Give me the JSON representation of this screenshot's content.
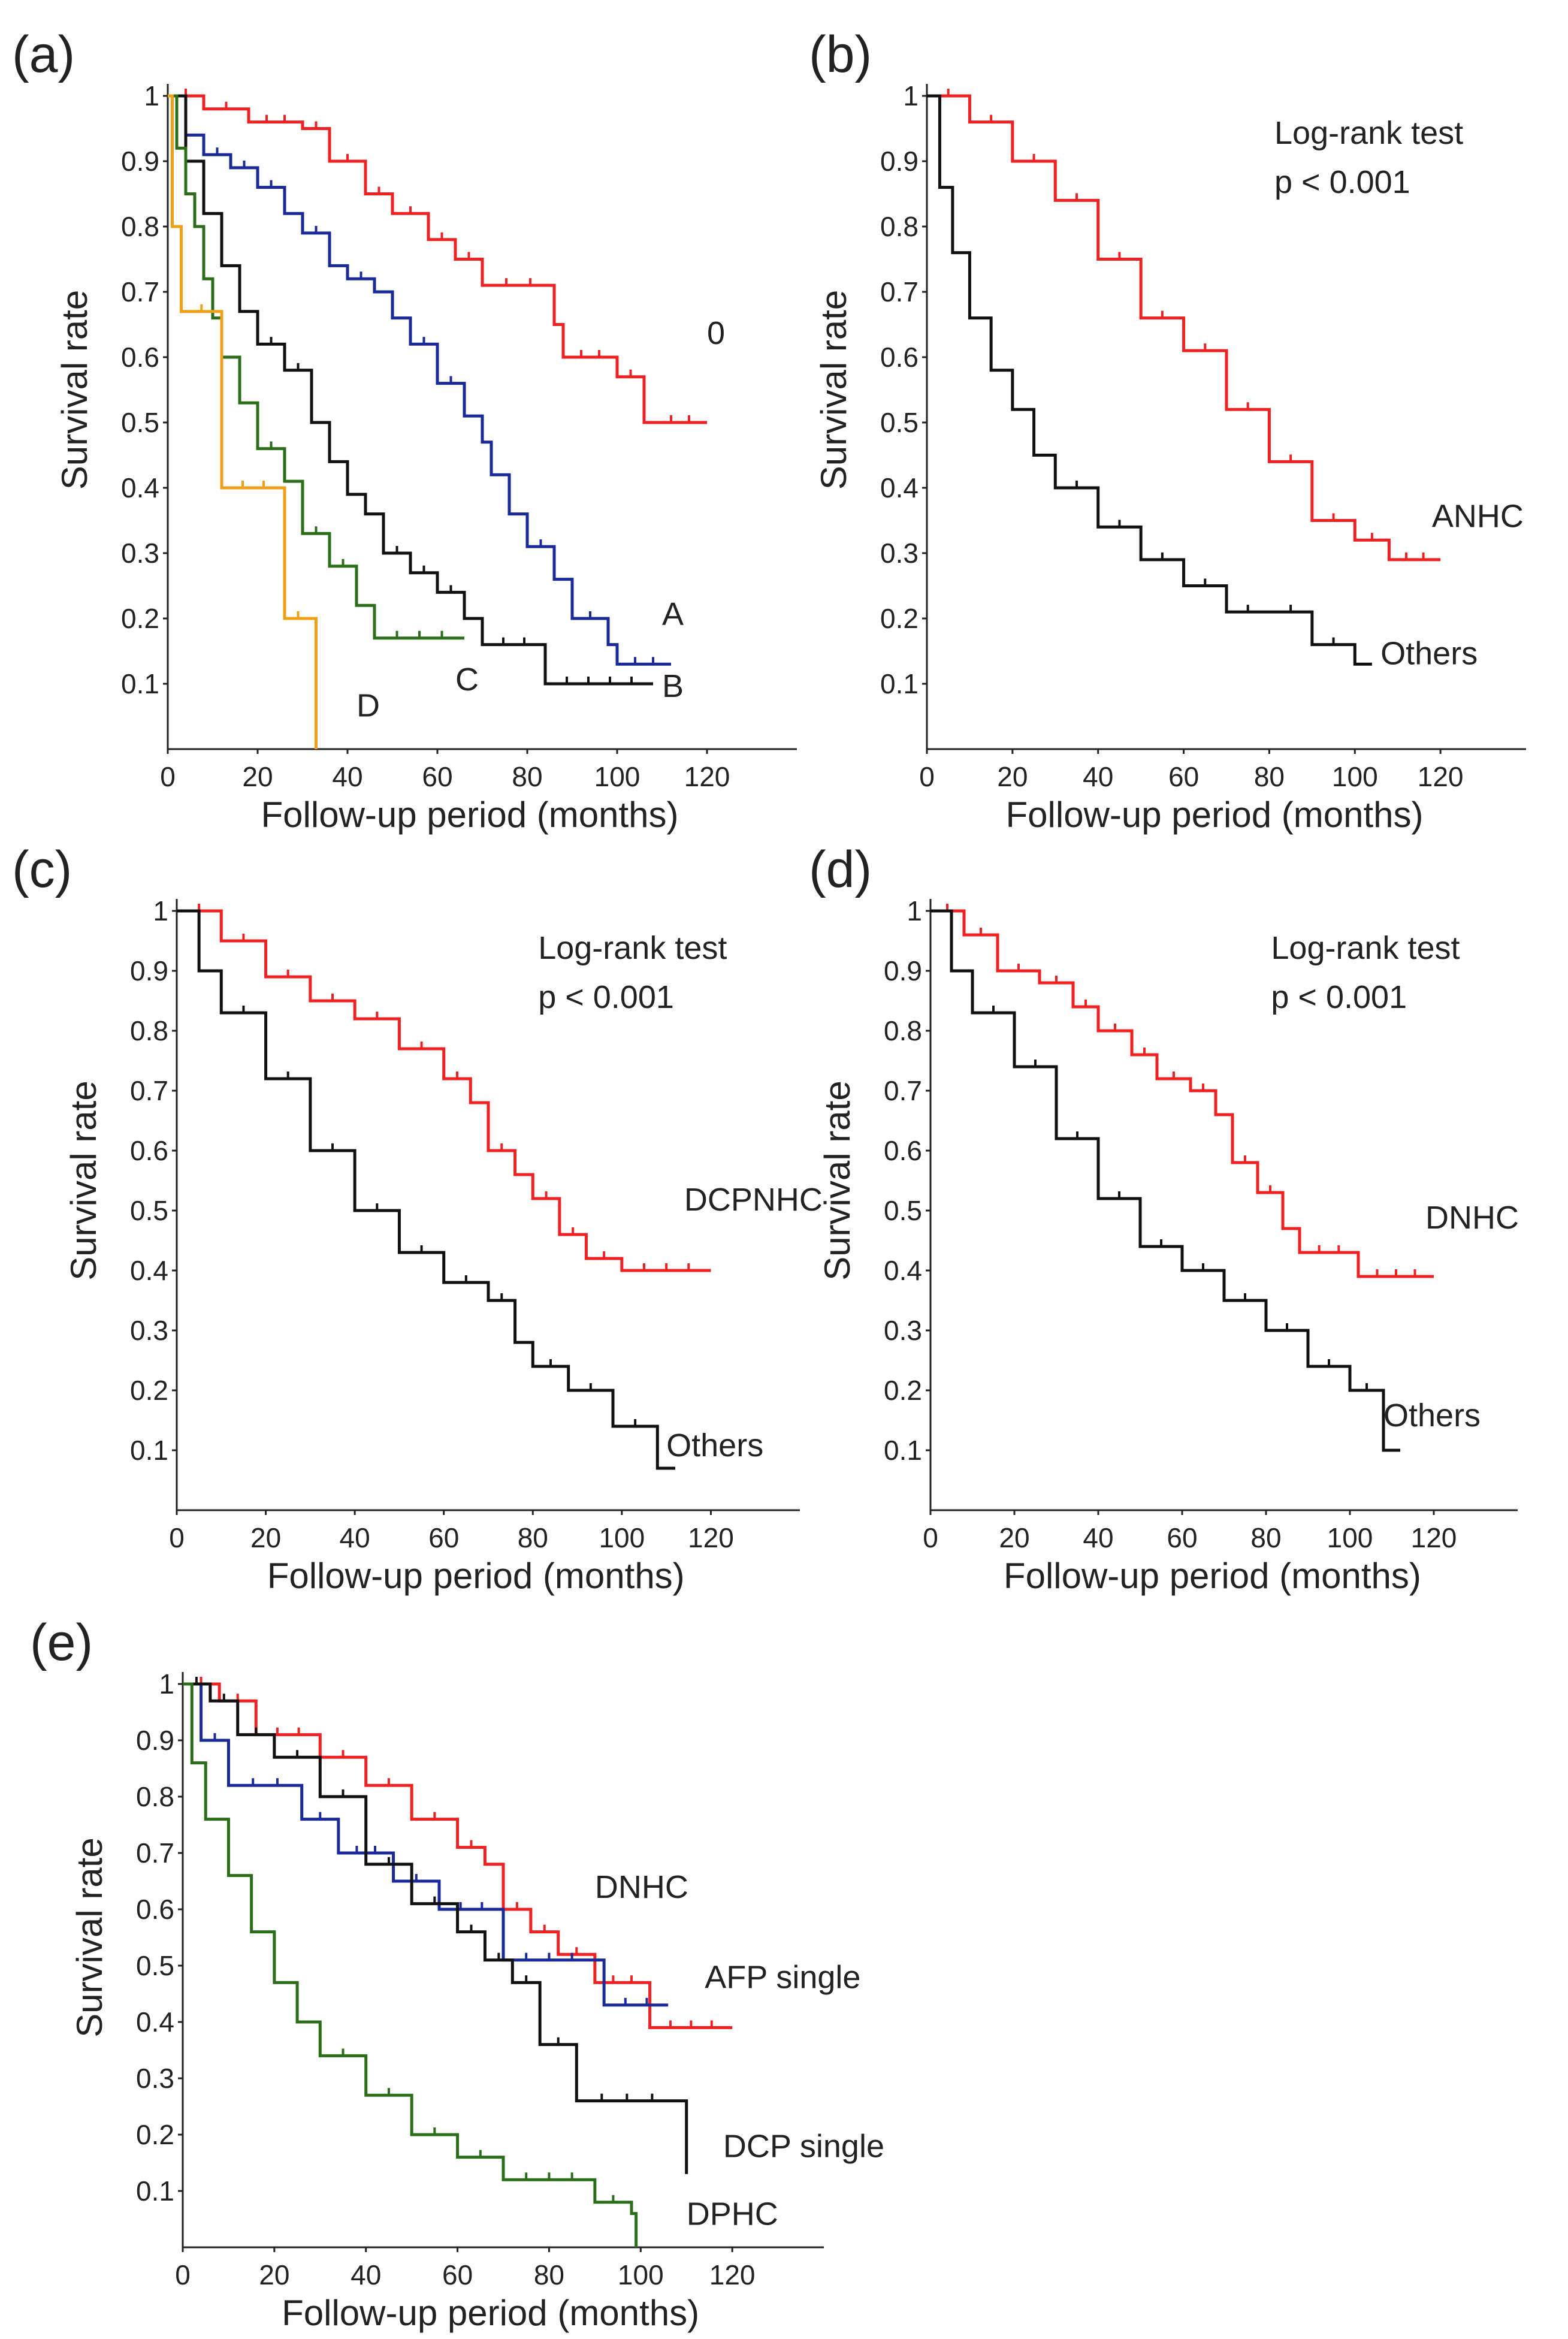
{
  "chart_data": [
    {
      "panel": "(a)",
      "type": "line",
      "title": "",
      "xlabel": "Follow-up period  (months)",
      "ylabel": "Survival rate",
      "xlim": [
        0,
        140
      ],
      "ylim": [
        0,
        1
      ],
      "xticks": [
        0,
        20,
        40,
        60,
        80,
        100,
        120
      ],
      "yticks": [
        0.1,
        0.2,
        0.3,
        0.4,
        0.5,
        0.6,
        0.7,
        0.8,
        0.9,
        1
      ],
      "annotation": [],
      "series": [
        {
          "name": "0",
          "color": "#ee2222",
          "label_at": [
            120,
            0.62
          ],
          "x": [
            0,
            8,
            18,
            30,
            36,
            44,
            50,
            58,
            64,
            70,
            86,
            88,
            100,
            106,
            108,
            120
          ],
          "y": [
            1,
            0.98,
            0.96,
            0.95,
            0.9,
            0.85,
            0.82,
            0.78,
            0.75,
            0.71,
            0.65,
            0.6,
            0.57,
            0.5,
            0.5,
            0.5
          ]
        },
        {
          "name": "A",
          "color": "#1a2a99",
          "label_at": [
            110,
            0.19
          ],
          "x": [
            0,
            4,
            8,
            14,
            20,
            26,
            30,
            36,
            40,
            46,
            50,
            54,
            60,
            66,
            70,
            72,
            76,
            80,
            86,
            90,
            98,
            100,
            112
          ],
          "y": [
            1,
            0.94,
            0.91,
            0.89,
            0.86,
            0.82,
            0.79,
            0.74,
            0.72,
            0.7,
            0.66,
            0.62,
            0.56,
            0.51,
            0.47,
            0.42,
            0.36,
            0.31,
            0.26,
            0.2,
            0.16,
            0.13,
            0.13
          ]
        },
        {
          "name": "B",
          "color": "#111111",
          "label_at": [
            110,
            0.08
          ],
          "x": [
            0,
            4,
            8,
            12,
            16,
            20,
            26,
            32,
            36,
            40,
            44,
            48,
            54,
            60,
            66,
            70,
            84,
            108
          ],
          "y": [
            1,
            0.9,
            0.82,
            0.74,
            0.67,
            0.62,
            0.58,
            0.5,
            0.44,
            0.39,
            0.36,
            0.3,
            0.27,
            0.24,
            0.2,
            0.16,
            0.1,
            0.1
          ]
        },
        {
          "name": "C",
          "color": "#2a6e1a",
          "label_at": [
            64,
            0.09
          ],
          "x": [
            0,
            2,
            4,
            6,
            8,
            10,
            12,
            16,
            20,
            26,
            30,
            36,
            42,
            46,
            66
          ],
          "y": [
            1,
            0.92,
            0.85,
            0.8,
            0.72,
            0.66,
            0.6,
            0.53,
            0.46,
            0.41,
            0.33,
            0.28,
            0.22,
            0.17,
            0.17
          ]
        },
        {
          "name": "D",
          "color": "#f0a018",
          "label_at": [
            42,
            0.05
          ],
          "x": [
            0,
            1,
            3,
            12,
            26,
            32,
            33
          ],
          "y": [
            1,
            0.8,
            0.67,
            0.4,
            0.2,
            0.2,
            0
          ]
        }
      ]
    },
    {
      "panel": "(b)",
      "type": "line",
      "title": "",
      "xlabel": "Follow-up period  (months)",
      "ylabel": "Survival rate",
      "xlim": [
        0,
        140
      ],
      "ylim": [
        0,
        1
      ],
      "xticks": [
        0,
        20,
        40,
        60,
        80,
        100,
        120
      ],
      "yticks": [
        0.1,
        0.2,
        0.3,
        0.4,
        0.5,
        0.6,
        0.7,
        0.8,
        0.9,
        1
      ],
      "annotation": [
        "Log-rank test",
        " p < 0.001"
      ],
      "series": [
        {
          "name": "ANHC",
          "color": "#ee2222",
          "label_at": [
            118,
            0.34
          ],
          "x": [
            0,
            10,
            20,
            30,
            40,
            50,
            60,
            70,
            80,
            90,
            100,
            108,
            120
          ],
          "y": [
            1,
            0.96,
            0.9,
            0.84,
            0.75,
            0.66,
            0.61,
            0.52,
            0.44,
            0.35,
            0.32,
            0.29,
            0.29
          ]
        },
        {
          "name": "Others",
          "color": "#111111",
          "label_at": [
            106,
            0.13
          ],
          "x": [
            0,
            3,
            6,
            10,
            15,
            20,
            25,
            30,
            40,
            50,
            60,
            70,
            80,
            90,
            100,
            104
          ],
          "y": [
            1,
            0.86,
            0.76,
            0.66,
            0.58,
            0.52,
            0.45,
            0.4,
            0.34,
            0.29,
            0.25,
            0.21,
            0.21,
            0.16,
            0.13,
            0.13
          ]
        }
      ]
    },
    {
      "panel": "(c)",
      "type": "line",
      "title": "",
      "xlabel": "Follow-up period  (months)",
      "ylabel": "Survival rate",
      "xlim": [
        0,
        140
      ],
      "ylim": [
        0,
        1
      ],
      "xticks": [
        0,
        20,
        40,
        60,
        80,
        100,
        120
      ],
      "yticks": [
        0.1,
        0.2,
        0.3,
        0.4,
        0.5,
        0.6,
        0.7,
        0.8,
        0.9,
        1
      ],
      "annotation": [
        "Log-rank test",
        " p < 0.001"
      ],
      "series": [
        {
          "name": "DCPNHC",
          "color": "#ee2222",
          "label_at": [
            114,
            0.5
          ],
          "x": [
            0,
            10,
            20,
            30,
            40,
            50,
            60,
            66,
            70,
            76,
            80,
            86,
            92,
            100,
            120
          ],
          "y": [
            1,
            0.95,
            0.89,
            0.85,
            0.82,
            0.77,
            0.72,
            0.68,
            0.6,
            0.56,
            0.52,
            0.46,
            0.42,
            0.4,
            0.4
          ]
        },
        {
          "name": "Others",
          "color": "#111111",
          "label_at": [
            110,
            0.09
          ],
          "x": [
            0,
            5,
            10,
            20,
            30,
            40,
            50,
            60,
            70,
            76,
            80,
            88,
            98,
            108,
            112
          ],
          "y": [
            1,
            0.9,
            0.83,
            0.72,
            0.6,
            0.5,
            0.43,
            0.38,
            0.35,
            0.28,
            0.24,
            0.2,
            0.14,
            0.07,
            0.07
          ]
        }
      ]
    },
    {
      "panel": "(d)",
      "type": "line",
      "title": "",
      "xlabel": "Follow-up period  (months)",
      "ylabel": "Survival rate",
      "xlim": [
        0,
        140
      ],
      "ylim": [
        0,
        1
      ],
      "xticks": [
        0,
        20,
        40,
        60,
        80,
        100,
        120
      ],
      "yticks": [
        0.1,
        0.2,
        0.3,
        0.4,
        0.5,
        0.6,
        0.7,
        0.8,
        0.9,
        1
      ],
      "annotation": [
        "Log-rank test",
        " p < 0.001"
      ],
      "series": [
        {
          "name": "DNHC",
          "color": "#ee2222",
          "label_at": [
            118,
            0.47
          ],
          "x": [
            0,
            8,
            16,
            26,
            34,
            40,
            48,
            54,
            62,
            68,
            72,
            78,
            84,
            88,
            102,
            120
          ],
          "y": [
            1,
            0.96,
            0.9,
            0.88,
            0.84,
            0.8,
            0.76,
            0.72,
            0.7,
            0.66,
            0.58,
            0.53,
            0.47,
            0.43,
            0.39,
            0.39
          ]
        },
        {
          "name": "Others",
          "color": "#111111",
          "label_at": [
            108,
            0.14
          ],
          "x": [
            0,
            5,
            10,
            20,
            30,
            40,
            50,
            60,
            70,
            80,
            90,
            100,
            108,
            112
          ],
          "y": [
            1,
            0.9,
            0.83,
            0.74,
            0.62,
            0.52,
            0.44,
            0.4,
            0.35,
            0.3,
            0.24,
            0.2,
            0.1,
            0.1
          ]
        }
      ]
    },
    {
      "panel": "(e)",
      "type": "line",
      "title": "",
      "xlabel": "Follow-up period  (months)",
      "ylabel": "Survival rate",
      "xlim": [
        0,
        140
      ],
      "ylim": [
        0,
        1
      ],
      "xticks": [
        0,
        20,
        40,
        60,
        80,
        100,
        120
      ],
      "yticks": [
        0.1,
        0.2,
        0.3,
        0.4,
        0.5,
        0.6,
        0.7,
        0.8,
        0.9,
        1
      ],
      "annotation": [],
      "series": [
        {
          "name": "DNHC",
          "color": "#ee2222",
          "label_at": [
            90,
            0.62
          ],
          "x": [
            0,
            8,
            16,
            30,
            40,
            50,
            60,
            66,
            70,
            76,
            82,
            90,
            102,
            120
          ],
          "y": [
            1,
            0.97,
            0.91,
            0.87,
            0.82,
            0.76,
            0.71,
            0.68,
            0.6,
            0.56,
            0.52,
            0.47,
            0.39,
            0.39
          ]
        },
        {
          "name": "AFP single",
          "color": "#1a2a99",
          "label_at": [
            114,
            0.46
          ],
          "x": [
            0,
            4,
            10,
            26,
            34,
            46,
            56,
            70,
            90,
            92,
            106
          ],
          "y": [
            1,
            0.9,
            0.82,
            0.76,
            0.7,
            0.65,
            0.6,
            0.51,
            0.51,
            0.43,
            0.43
          ]
        },
        {
          "name": "DCP single",
          "color": "#111111",
          "label_at": [
            118,
            0.16
          ],
          "x": [
            0,
            6,
            12,
            20,
            30,
            40,
            50,
            60,
            66,
            72,
            78,
            86,
            108,
            110
          ],
          "y": [
            1,
            0.97,
            0.91,
            0.87,
            0.8,
            0.68,
            0.61,
            0.56,
            0.51,
            0.47,
            0.36,
            0.26,
            0.26,
            0.13
          ]
        },
        {
          "name": "DPHC",
          "color": "#2a6e1a",
          "label_at": [
            110,
            0.04
          ],
          "x": [
            0,
            2,
            5,
            10,
            15,
            20,
            25,
            30,
            40,
            50,
            60,
            70,
            90,
            98,
            99
          ],
          "y": [
            1,
            0.86,
            0.76,
            0.66,
            0.56,
            0.47,
            0.4,
            0.34,
            0.27,
            0.2,
            0.16,
            0.12,
            0.08,
            0.06,
            0
          ]
        }
      ]
    }
  ]
}
